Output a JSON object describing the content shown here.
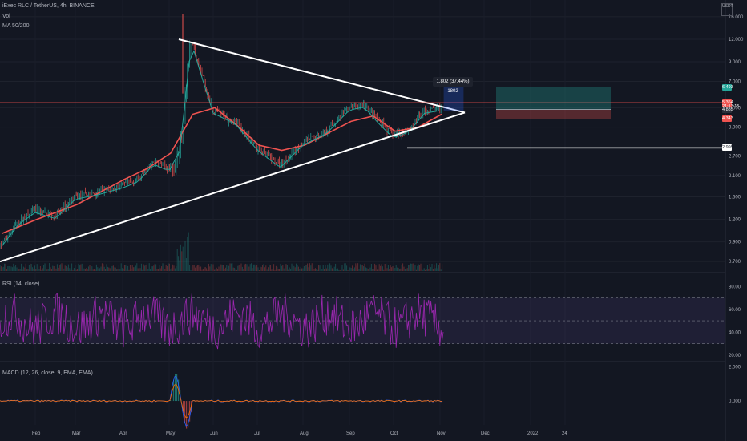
{
  "header": {
    "symbol_line": "iExec RLC / TetherUS, 4h, BINANCE",
    "vol_label": "Vol",
    "ma_label": "MA 50/200",
    "currency": "USDT"
  },
  "measure_label": "1.802 (37.44%) 1802",
  "price_tags": [
    {
      "text": "6.493",
      "value": 6.493,
      "color": "#26a69a"
    },
    {
      "text": "5.364",
      "value": 5.364,
      "color": "#ef5350"
    },
    {
      "text": "21:13:15",
      "value": 5.05,
      "color": "#ef5350"
    },
    {
      "text": "4.885",
      "value": 4.885,
      "color": "#2a2e39"
    },
    {
      "text": "4.343",
      "value": 4.343,
      "color": "#ef5350"
    },
    {
      "text": "2.995",
      "value": 2.995,
      "color": "#ffffff"
    }
  ],
  "rsi": {
    "label": "RSI (14, close)",
    "ticks": [
      "80.00",
      "60.00",
      "40.00",
      "20.00"
    ]
  },
  "macd": {
    "label": "MACD (12, 26, close, 9, EMA, EMA)",
    "ticks": [
      "2.000",
      "0.000"
    ]
  },
  "chart_data": {
    "type": "line",
    "scale": "log",
    "price_ticks": [
      "16.000",
      "12.000",
      "9.000",
      "7.000",
      "5.000",
      "3.900",
      "2.700",
      "2.100",
      "1.600",
      "1.200",
      "0.900",
      "0.700"
    ],
    "price_tick_values": [
      16,
      12,
      9,
      7,
      5,
      3.9,
      2.7,
      2.1,
      1.6,
      1.2,
      0.9,
      0.7
    ],
    "x_ticks": [
      "Feb",
      "Mar",
      "Apr",
      "May",
      "Jun",
      "Jul",
      "Aug",
      "Sep",
      "Oct",
      "Nov",
      "Dec",
      "2022",
      "24"
    ],
    "series": [
      {
        "name": "MA 50/200",
        "x": [
          "Jan",
          "Feb",
          "Mar",
          "Apr",
          "Apr",
          "May",
          "May",
          "Jun",
          "Jun",
          "Jul",
          "Jul",
          "Aug",
          "Sep",
          "Sep",
          "Oct",
          "Oct",
          "Nov"
        ],
        "values": [
          1.0,
          1.2,
          1.45,
          2.0,
          2.3,
          2.8,
          4.6,
          5.0,
          4.0,
          3.1,
          2.9,
          3.1,
          4.2,
          4.5,
          3.7,
          3.9,
          4.6
        ]
      }
    ],
    "price_path": {
      "x": [
        "Jan",
        "Jan",
        "Feb",
        "Feb",
        "Mar",
        "Mar",
        "Apr",
        "Apr",
        "Apr",
        "May",
        "May",
        "May",
        "May",
        "Jun",
        "Jun",
        "Jul",
        "Jul",
        "Aug",
        "Aug",
        "Sep",
        "Sep",
        "Sep",
        "Oct",
        "Oct",
        "Oct",
        "Nov"
      ],
      "values": [
        0.85,
        1.15,
        1.35,
        1.25,
        1.6,
        1.7,
        1.85,
        2.0,
        2.5,
        2.3,
        3.0,
        12.0,
        7.5,
        4.8,
        4.2,
        3.0,
        2.4,
        3.2,
        3.7,
        5.0,
        5.2,
        4.2,
        3.5,
        3.8,
        4.8,
        5.0
      ]
    },
    "annotations": {
      "triangle_upper": {
        "from": [
          "May",
          12.0
        ],
        "to": [
          "Nov",
          4.7
        ]
      },
      "triangle_lower": {
        "from": [
          "Jan",
          0.7
        ],
        "to": [
          "Nov",
          4.7
        ]
      },
      "support": {
        "value": 2.995
      },
      "position": {
        "entry": 4.885,
        "target": 6.493,
        "stop": 4.343
      }
    },
    "rsi_levels": [
      70,
      50,
      30
    ],
    "macd_range": [
      -1,
      2
    ]
  }
}
